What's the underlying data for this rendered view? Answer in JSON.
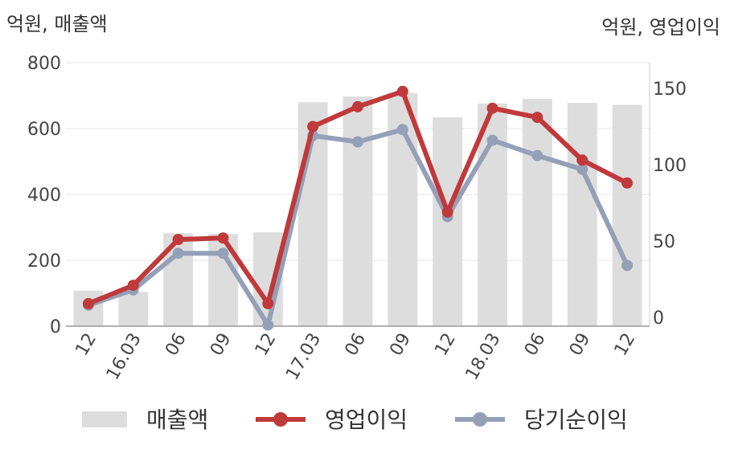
{
  "chart_data": {
    "type": "bar+line",
    "left_axis_unit": "억원, 매출액",
    "right_axis_unit": "억원, 영업이익",
    "categories": [
      "12",
      "16.03",
      "06",
      "09",
      "12",
      "17.03",
      "06",
      "09",
      "12",
      "18.03",
      "06",
      "09",
      "12"
    ],
    "left_ylim": [
      0,
      800
    ],
    "left_ticks": [
      "0",
      "200",
      "400",
      "600",
      "800"
    ],
    "right_ylim": [
      0,
      175
    ],
    "right_ticks": [
      "0",
      "50",
      "100",
      "150"
    ],
    "grid": true,
    "legend_position": "bottom",
    "series": [
      {
        "name": "매출액",
        "kind": "bar",
        "axis": "left",
        "color": "#dddddd",
        "values": [
          108,
          104,
          282,
          280,
          285,
          680,
          697,
          708,
          634,
          676,
          690,
          678,
          672
        ]
      },
      {
        "name": "영업이익",
        "kind": "line",
        "axis": "right",
        "color": "#c0393b",
        "values": [
          9,
          21,
          51,
          52,
          9,
          125,
          138,
          148,
          69,
          137,
          131,
          103,
          88
        ]
      },
      {
        "name": "당기순이익",
        "kind": "line",
        "axis": "right",
        "color": "#95a0b8",
        "values": [
          8,
          18,
          42,
          42,
          -5,
          119,
          115,
          123,
          66,
          116,
          106,
          97,
          34
        ]
      }
    ]
  }
}
